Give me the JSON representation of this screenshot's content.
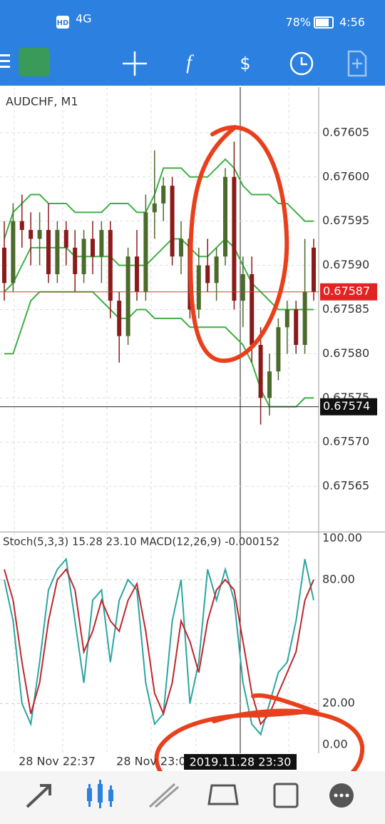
{
  "status_bar": {
    "network": "HD",
    "signal": "4G",
    "battery": "78%",
    "time": "4:56"
  },
  "chart_data": [
    {
      "type": "candlestick",
      "title": "AUDCHF, M1",
      "open": [
        0.67592,
        0.67588,
        0.67595,
        0.67594,
        0.67593,
        0.67594,
        0.67589,
        0.67594,
        0.67592,
        0.67589,
        0.67593,
        0.67591,
        0.67594,
        0.67586,
        0.67582,
        0.67591,
        0.67587,
        0.67596,
        0.67597,
        0.67599,
        0.67591,
        0.67593,
        0.67585,
        0.6759,
        0.67588,
        0.67591,
        0.676,
        0.67586,
        0.67589,
        0.67581,
        0.67575,
        0.67578,
        0.67583,
        0.67585,
        0.67581,
        0.67592
      ],
      "high": [
        0.67595,
        0.67597,
        0.67598,
        0.67596,
        0.67596,
        0.67597,
        0.67595,
        0.67595,
        0.67594,
        0.67594,
        0.67595,
        0.67595,
        0.67595,
        0.67587,
        0.67592,
        0.67594,
        0.67598,
        0.67603,
        0.676,
        0.676,
        0.67595,
        0.67594,
        0.67592,
        0.67593,
        0.67592,
        0.67601,
        0.67604,
        0.67591,
        0.67591,
        0.67583,
        0.6758,
        0.67584,
        0.67586,
        0.67586,
        0.67593,
        0.67593
      ],
      "low": [
        0.67586,
        0.67587,
        0.67592,
        0.6759,
        0.6759,
        0.67588,
        0.67588,
        0.6759,
        0.67587,
        0.67588,
        0.67589,
        0.67588,
        0.67584,
        0.67579,
        0.67581,
        0.67586,
        0.67586,
        0.67593,
        0.67595,
        0.6759,
        0.67589,
        0.67584,
        0.67584,
        0.67587,
        0.67586,
        0.6759,
        0.67585,
        0.67583,
        0.67579,
        0.67572,
        0.67573,
        0.67577,
        0.6758,
        0.6758,
        0.6758,
        0.67586
      ],
      "close": [
        0.67588,
        0.67595,
        0.67594,
        0.67593,
        0.67594,
        0.67589,
        0.67594,
        0.67592,
        0.67589,
        0.67593,
        0.67591,
        0.67594,
        0.67586,
        0.67582,
        0.67591,
        0.67587,
        0.67596,
        0.67597,
        0.67599,
        0.67591,
        0.67593,
        0.67585,
        0.6759,
        0.67588,
        0.67591,
        0.676,
        0.67586,
        0.67589,
        0.67581,
        0.67575,
        0.67578,
        0.67583,
        0.67585,
        0.67581,
        0.67587,
        0.67587
      ],
      "series": [
        {
          "name": "upper",
          "color": "#3cb043",
          "values": [
            0.67593,
            0.67596,
            0.67597,
            0.67598,
            0.67598,
            0.67597,
            0.67597,
            0.67597,
            0.67596,
            0.67596,
            0.67596,
            0.67596,
            0.67597,
            0.67597,
            0.67597,
            0.67596,
            0.67596,
            0.67598,
            0.67601,
            0.67601,
            0.67601,
            0.676,
            0.676,
            0.676,
            0.67601,
            0.67602,
            0.67601,
            0.67599,
            0.67598,
            0.67598,
            0.67598,
            0.67597,
            0.67597,
            0.67596,
            0.67595,
            0.67595
          ]
        },
        {
          "name": "middle",
          "color": "#3cb043",
          "values": [
            0.67587,
            0.67588,
            0.6759,
            0.67592,
            0.67592,
            0.67592,
            0.67592,
            0.67592,
            0.67591,
            0.67591,
            0.67591,
            0.67591,
            0.67591,
            0.6759,
            0.6759,
            0.6759,
            0.6759,
            0.67591,
            0.67592,
            0.67593,
            0.67593,
            0.67592,
            0.67591,
            0.67591,
            0.67592,
            0.67593,
            0.67592,
            0.6759,
            0.67588,
            0.67587,
            0.67586,
            0.67585,
            0.67585,
            0.67585,
            0.67585,
            0.67585
          ]
        },
        {
          "name": "lower",
          "color": "#3cb043",
          "values": [
            0.6758,
            0.6758,
            0.67583,
            0.67586,
            0.67587,
            0.67587,
            0.67587,
            0.67587,
            0.67587,
            0.67587,
            0.67587,
            0.67586,
            0.67585,
            0.67584,
            0.67584,
            0.67585,
            0.67585,
            0.67584,
            0.67584,
            0.67584,
            0.67584,
            0.67583,
            0.67583,
            0.67583,
            0.67583,
            0.67583,
            0.67582,
            0.67581,
            0.67579,
            0.67576,
            0.67574,
            0.67574,
            0.67574,
            0.67574,
            0.67575,
            0.67575
          ]
        }
      ],
      "up_color": "#4a6b2a",
      "down_color": "#8b1a1a",
      "ylim": [
        0.6756,
        0.6761
      ],
      "yticks": [
        0.67605,
        {
          "value": 0.676,
          "label": "0.67600"
        },
        0.67595,
        {
          "value": 0.6759,
          "label": "0.67590"
        },
        0.67585,
        {
          "value": 0.6758,
          "label": "0.67580"
        },
        0.67575,
        {
          "value": 0.6757,
          "label": "0.67570"
        },
        0.67565
      ],
      "current_price": 0.67587,
      "crosshair_price": 0.67574,
      "grid": true
    },
    {
      "type": "stochastic",
      "title": "Stoch(5,3,3) 15.28 23.10 MACD(12,26,9) -0.000152",
      "series": [
        {
          "name": "main",
          "color": "#2aa6a0",
          "values": [
            80,
            60,
            20,
            10,
            40,
            75,
            85,
            90,
            60,
            30,
            70,
            75,
            40,
            70,
            80,
            75,
            30,
            10,
            15,
            60,
            80,
            20,
            40,
            85,
            70,
            85,
            70,
            30,
            10,
            5,
            20,
            35,
            40,
            60,
            90,
            70
          ]
        },
        {
          "name": "signal",
          "color": "#c0262c",
          "values": [
            85,
            70,
            40,
            15,
            30,
            60,
            80,
            85,
            75,
            45,
            55,
            70,
            60,
            55,
            70,
            78,
            55,
            25,
            15,
            30,
            60,
            50,
            35,
            60,
            75,
            80,
            75,
            50,
            25,
            10,
            15,
            25,
            35,
            45,
            70,
            80
          ]
        }
      ],
      "ylim": [
        0,
        100
      ],
      "yticks": [
        {
          "value": 100,
          "label": "100.00"
        },
        {
          "value": 80,
          "label": "80.00"
        },
        {
          "value": 20,
          "label": "20.00"
        },
        {
          "value": 0,
          "label": "0.00"
        }
      ],
      "x_labels": [
        "28 Nov 22:37",
        "28 Nov 23:0"
      ],
      "crosshair_time": "2019.11.28 23:30"
    }
  ]
}
